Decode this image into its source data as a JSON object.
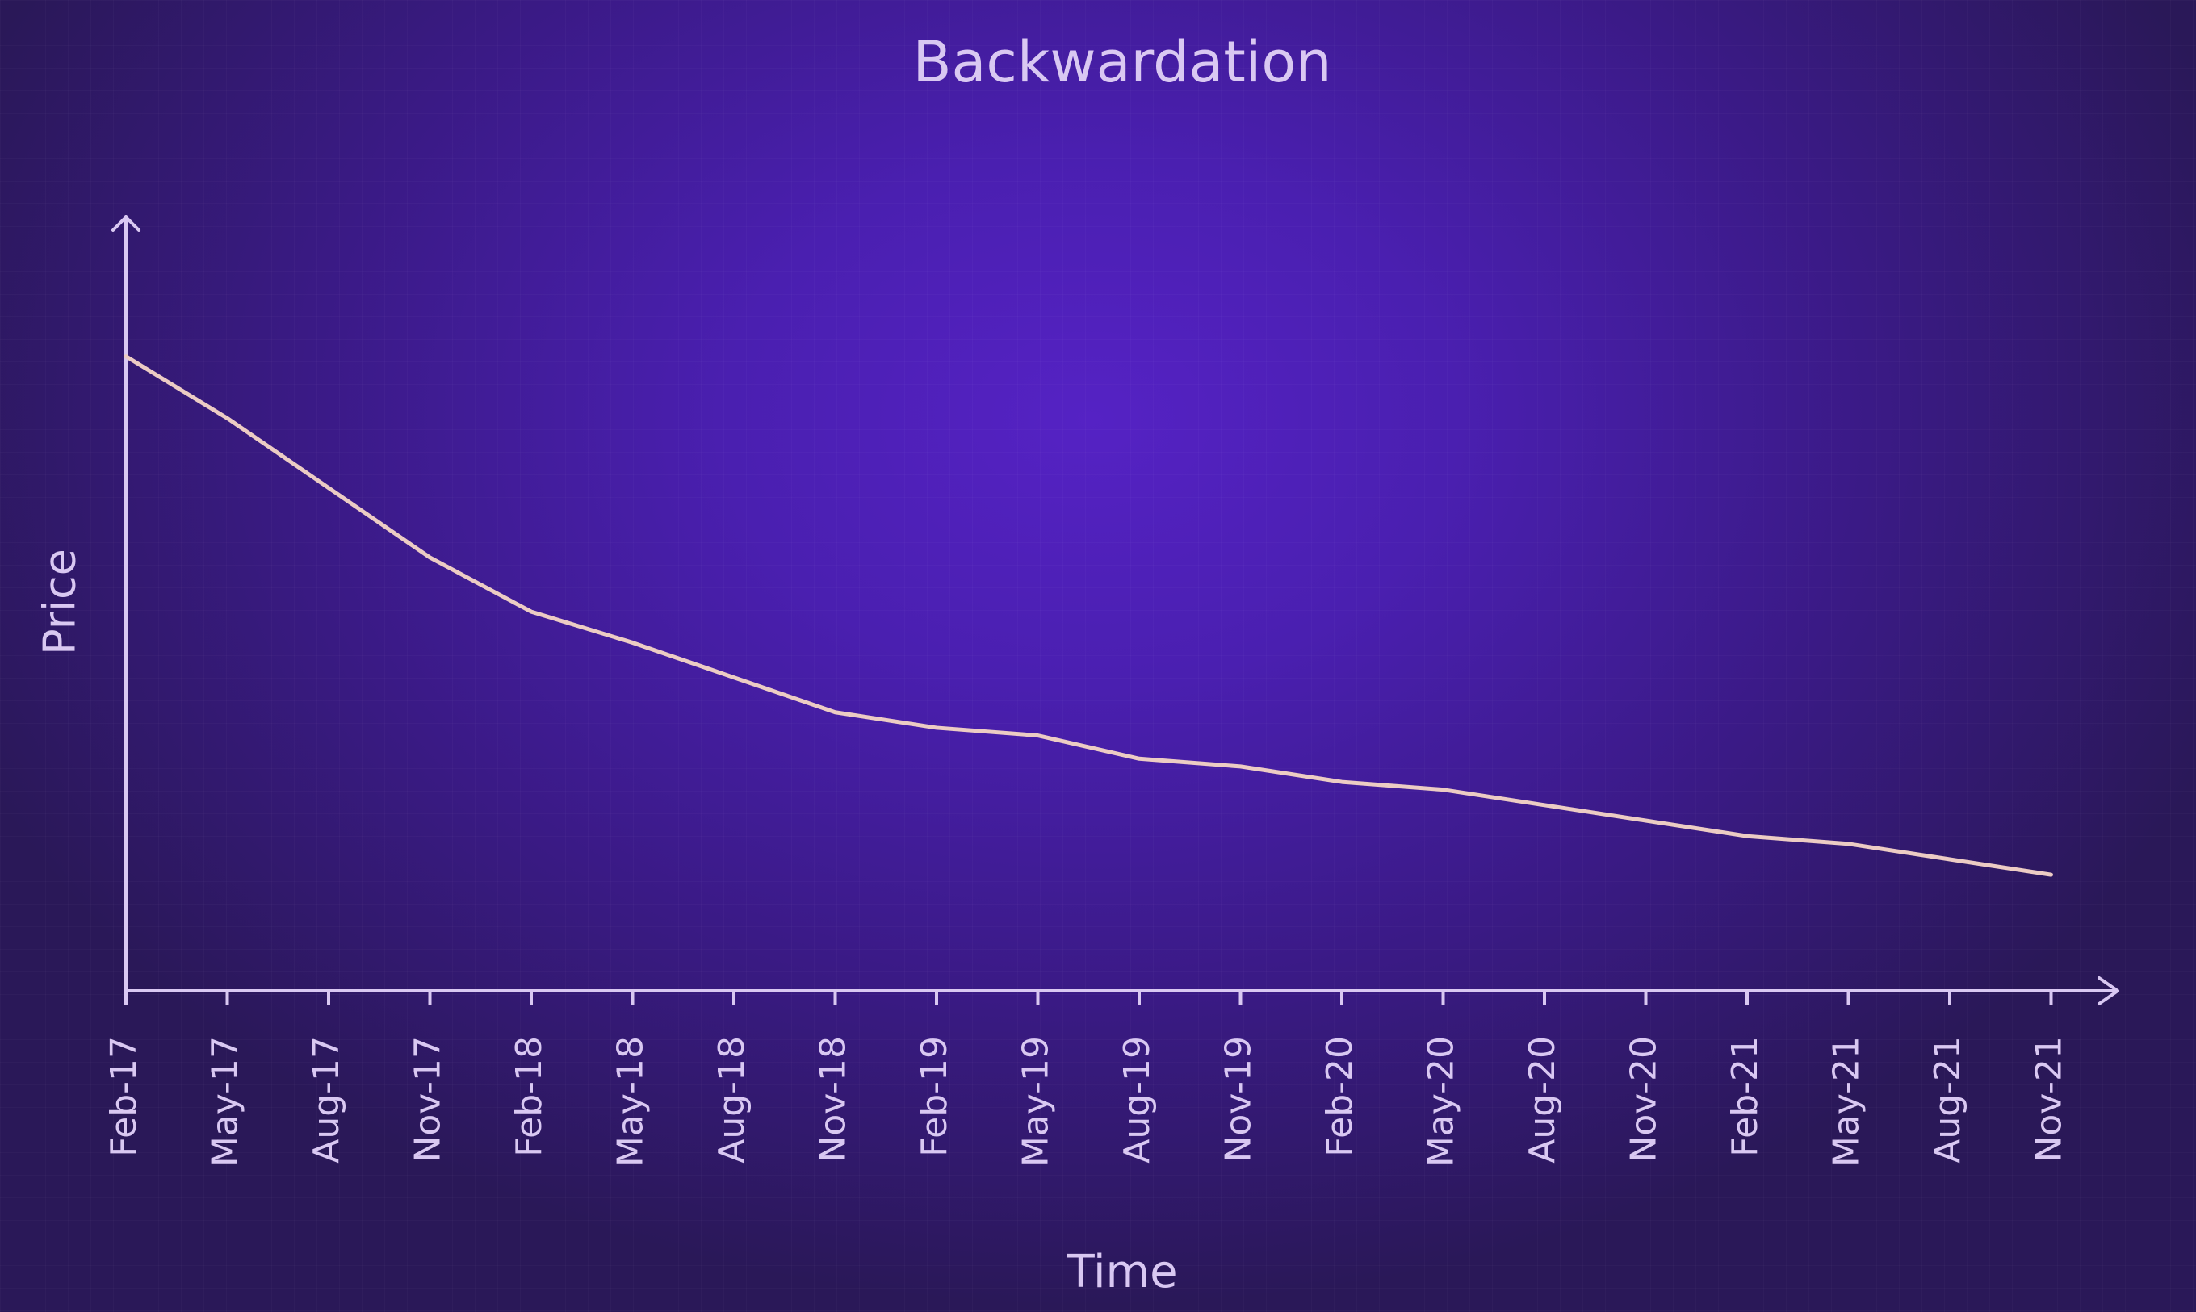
{
  "chart_data": {
    "type": "line",
    "title": "Backwardation",
    "x_label": "Time",
    "y_label": "Price",
    "categories": [
      "Feb-17",
      "May-17",
      "Aug-17",
      "Nov-17",
      "Feb-18",
      "May-18",
      "Aug-18",
      "Nov-18",
      "Feb-19",
      "May-19",
      "Aug-19",
      "Nov-19",
      "Feb-20",
      "May-20",
      "Aug-20",
      "Nov-20",
      "Feb-21",
      "May-21",
      "Aug-21",
      "Nov-21"
    ],
    "series": [
      {
        "color": "#ecccc4",
        "values": [
          82,
          74,
          65,
          56,
          49,
          45,
          40.5,
          36,
          34,
          33,
          30,
          29,
          27,
          26,
          24,
          22,
          20,
          19,
          17,
          15
        ]
      }
    ],
    "ylim": [
      0,
      100
    ]
  }
}
